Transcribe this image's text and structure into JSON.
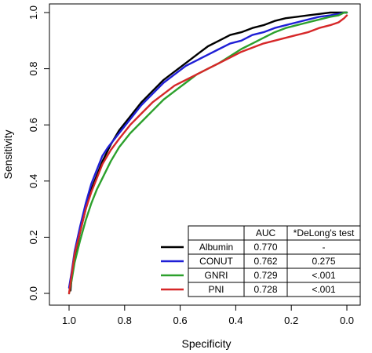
{
  "chart_data": {
    "type": "line",
    "title": "",
    "xlabel": "Specificity",
    "ylabel": "Sensitivity",
    "xlim": [
      1.0,
      0.0
    ],
    "ylim": [
      0.0,
      1.0
    ],
    "x_reversed": true,
    "xticks": [
      "1.0",
      "0.8",
      "0.6",
      "0.4",
      "0.2",
      "0.0"
    ],
    "yticks": [
      "0.0",
      "0.2",
      "0.4",
      "0.6",
      "0.8",
      "1.0"
    ],
    "grid": false,
    "legend_position": "bottom-right",
    "legend_table": {
      "headers": [
        "",
        "AUC",
        "*DeLong's test"
      ],
      "rows": [
        {
          "name": "Albumin",
          "auc": "0.770",
          "delong": "-"
        },
        {
          "name": "CONUT",
          "auc": "0.762",
          "delong": "0.275"
        },
        {
          "name": "GNRI",
          "auc": "0.729",
          "delong": "<.001"
        },
        {
          "name": "PNI",
          "auc": "0.728",
          "delong": "<.001"
        }
      ]
    },
    "series": [
      {
        "name": "Albumin",
        "color": "#000000",
        "x": [
          0.995,
          0.99,
          0.98,
          0.96,
          0.94,
          0.92,
          0.9,
          0.88,
          0.85,
          0.82,
          0.78,
          0.74,
          0.7,
          0.66,
          0.62,
          0.58,
          0.54,
          0.5,
          0.46,
          0.42,
          0.38,
          0.34,
          0.3,
          0.26,
          0.22,
          0.18,
          0.14,
          0.1,
          0.06,
          0.03,
          0.01,
          0.0
        ],
        "y": [
          0.01,
          0.06,
          0.13,
          0.22,
          0.3,
          0.37,
          0.42,
          0.47,
          0.53,
          0.58,
          0.63,
          0.68,
          0.72,
          0.76,
          0.79,
          0.82,
          0.85,
          0.88,
          0.9,
          0.92,
          0.93,
          0.945,
          0.955,
          0.97,
          0.98,
          0.985,
          0.99,
          0.995,
          1.0,
          1.0,
          1.0,
          1.0
        ]
      },
      {
        "name": "CONUT",
        "color": "#1f1fd6",
        "x": [
          1.0,
          0.99,
          0.98,
          0.96,
          0.94,
          0.92,
          0.9,
          0.88,
          0.86,
          0.82,
          0.78,
          0.74,
          0.7,
          0.66,
          0.62,
          0.58,
          0.54,
          0.5,
          0.46,
          0.42,
          0.38,
          0.34,
          0.3,
          0.26,
          0.22,
          0.18,
          0.14,
          0.1,
          0.06,
          0.03,
          0.01,
          0.0
        ],
        "y": [
          0.02,
          0.08,
          0.15,
          0.24,
          0.32,
          0.39,
          0.44,
          0.49,
          0.52,
          0.57,
          0.62,
          0.67,
          0.71,
          0.75,
          0.78,
          0.81,
          0.83,
          0.85,
          0.87,
          0.89,
          0.9,
          0.92,
          0.93,
          0.945,
          0.955,
          0.965,
          0.975,
          0.985,
          0.99,
          0.995,
          1.0,
          1.0
        ]
      },
      {
        "name": "GNRI",
        "color": "#2ca02c",
        "x": [
          1.0,
          0.99,
          0.98,
          0.96,
          0.94,
          0.92,
          0.9,
          0.88,
          0.85,
          0.82,
          0.78,
          0.74,
          0.7,
          0.66,
          0.62,
          0.58,
          0.54,
          0.5,
          0.46,
          0.42,
          0.38,
          0.34,
          0.3,
          0.26,
          0.22,
          0.18,
          0.14,
          0.1,
          0.06,
          0.03,
          0.01,
          0.0
        ],
        "y": [
          0.0,
          0.05,
          0.11,
          0.19,
          0.26,
          0.32,
          0.37,
          0.41,
          0.47,
          0.52,
          0.57,
          0.61,
          0.65,
          0.69,
          0.72,
          0.75,
          0.78,
          0.8,
          0.82,
          0.845,
          0.87,
          0.89,
          0.91,
          0.93,
          0.945,
          0.955,
          0.965,
          0.975,
          0.985,
          0.99,
          1.0,
          1.0
        ]
      },
      {
        "name": "PNI",
        "color": "#d62728",
        "x": [
          1.0,
          0.99,
          0.98,
          0.96,
          0.94,
          0.92,
          0.9,
          0.88,
          0.85,
          0.82,
          0.78,
          0.74,
          0.7,
          0.66,
          0.62,
          0.58,
          0.54,
          0.5,
          0.46,
          0.42,
          0.38,
          0.34,
          0.3,
          0.26,
          0.22,
          0.18,
          0.14,
          0.1,
          0.06,
          0.03,
          0.01,
          0.0
        ],
        "y": [
          0.0,
          0.07,
          0.14,
          0.22,
          0.3,
          0.36,
          0.41,
          0.46,
          0.51,
          0.55,
          0.6,
          0.64,
          0.68,
          0.71,
          0.74,
          0.76,
          0.78,
          0.8,
          0.82,
          0.84,
          0.86,
          0.875,
          0.89,
          0.9,
          0.91,
          0.92,
          0.93,
          0.945,
          0.955,
          0.965,
          0.98,
          0.99
        ]
      }
    ]
  }
}
